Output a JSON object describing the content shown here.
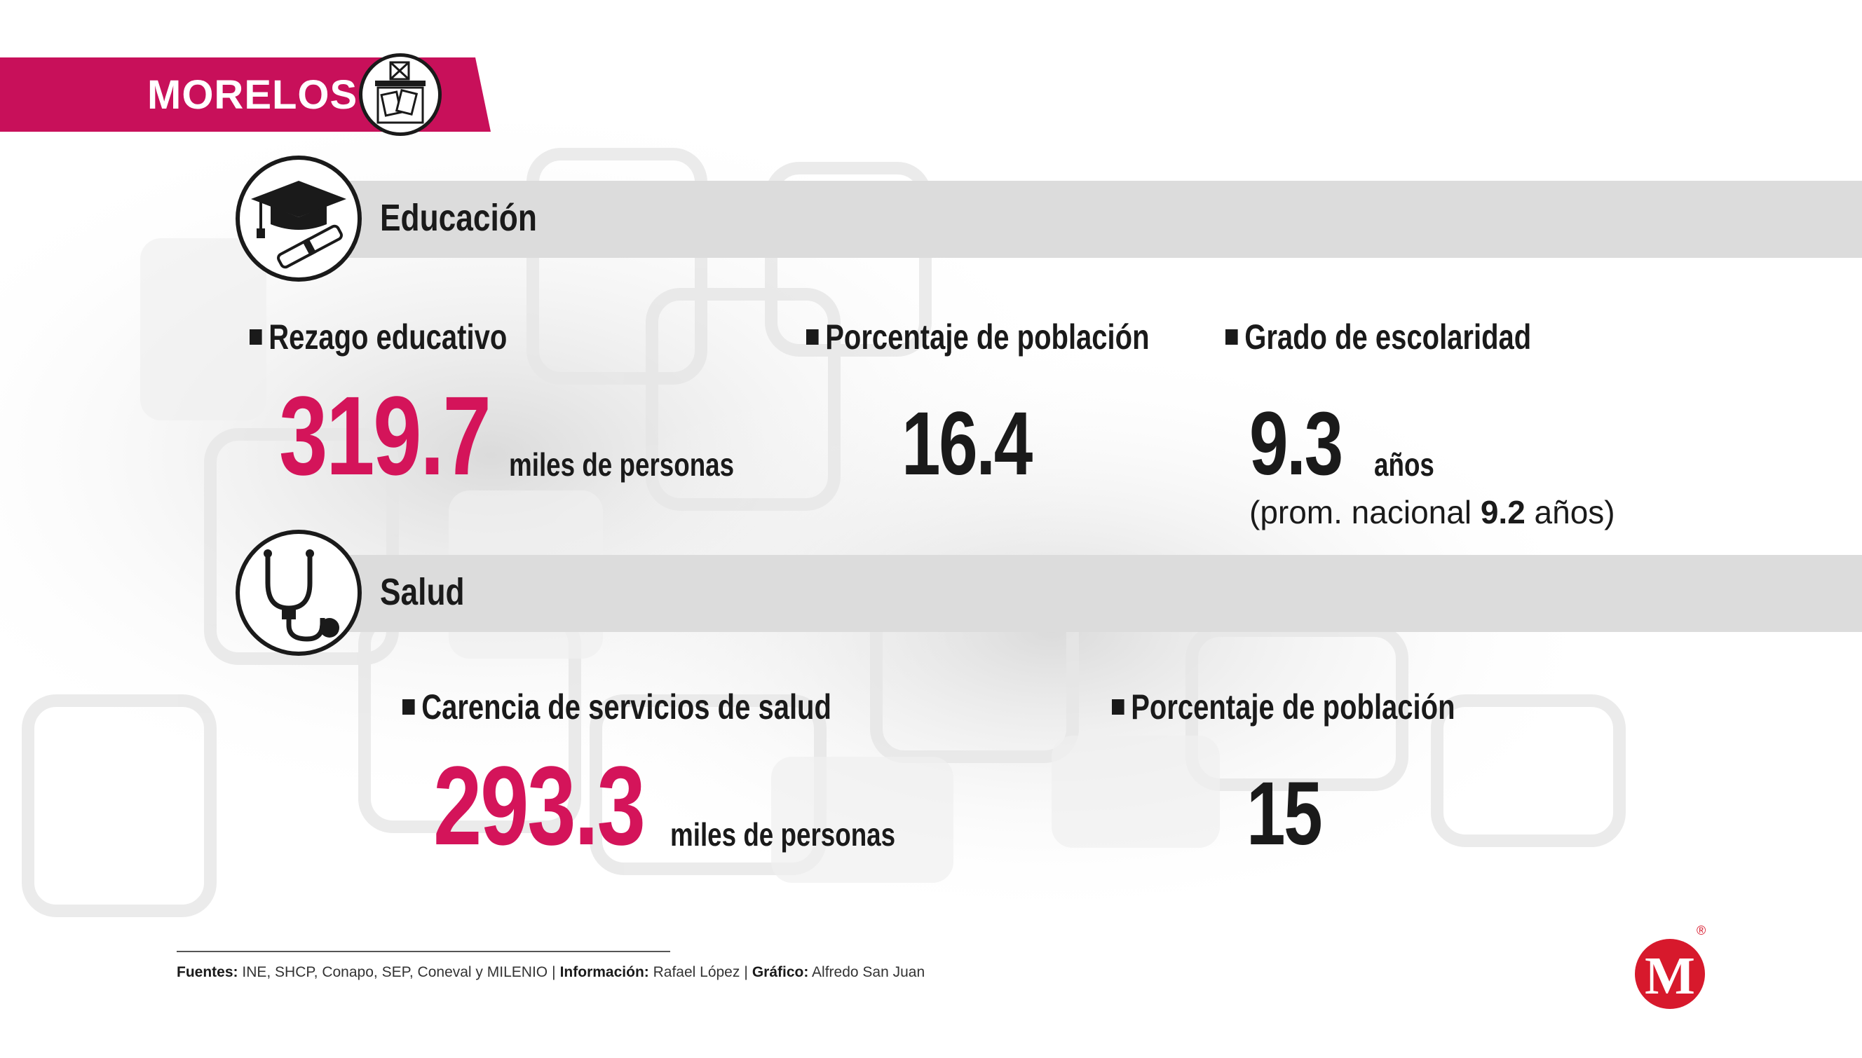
{
  "state": {
    "name": "MORELOS",
    "icon": "ballot-box-icon"
  },
  "colors": {
    "accent": "#d4145a",
    "dark": "#1a1a1a",
    "band": "#dcdcdc",
    "logo": "#d7192c"
  },
  "education": {
    "title": "Educación",
    "icon": "graduation-cap-diploma-icon",
    "stats": [
      {
        "label": "Rezago educativo",
        "value": "319.7",
        "unit": "miles de personas"
      },
      {
        "label": "Porcentaje de población",
        "value": "16.4"
      },
      {
        "label": "Grado de escolaridad",
        "value": "9.3",
        "unit": "años",
        "note_prefix": "(prom. nacional ",
        "note_value": "9.2",
        "note_suffix": " años)"
      }
    ]
  },
  "health": {
    "title": "Salud",
    "icon": "stethoscope-icon",
    "stats": [
      {
        "label": "Carencia de servicios de salud",
        "value": "293.3",
        "unit": "miles de personas"
      },
      {
        "label": "Porcentaje de población",
        "value": "15"
      }
    ]
  },
  "footer": {
    "sources_label": "Fuentes:",
    "sources": "INE, SHCP, Conapo, SEP, Coneval y MILENIO",
    "info_label": "Información:",
    "info": "Rafael López",
    "graphic_label": "Gráfico:",
    "graphic": "Alfredo San Juan",
    "separator": "|"
  },
  "logo": {
    "letter": "M",
    "registered": "®"
  }
}
